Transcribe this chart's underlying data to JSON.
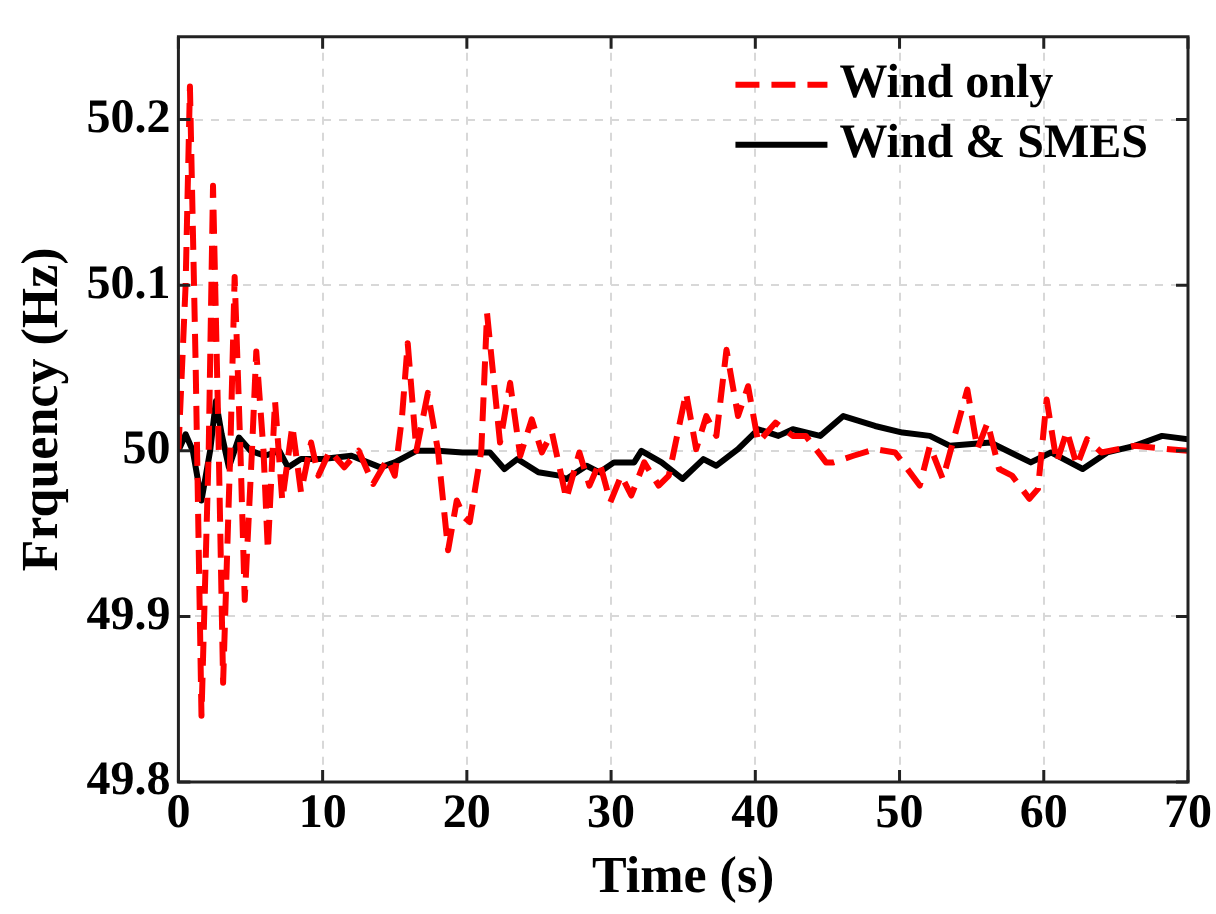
{
  "chart_data": {
    "type": "line",
    "xlabel": "Time (s)",
    "ylabel": "Frquency (Hz)",
    "xlim": [
      0,
      70
    ],
    "xticks": [
      0,
      10,
      20,
      30,
      40,
      50,
      60,
      70
    ],
    "ylim": [
      49.8,
      50.25
    ],
    "yticks": [
      49.8,
      49.9,
      50,
      50.1,
      50.2
    ],
    "grid": true,
    "legend": "top right",
    "marker": "none",
    "series": [
      {
        "name": "Wind only",
        "color": "#ff0000",
        "line_style": "dashed",
        "x": [
          0,
          0.5,
          0.8,
          1.2,
          1.6,
          2.1,
          2.4,
          2.8,
          3.1,
          3.6,
          3.9,
          4.3,
          4.6,
          5.1,
          5.4,
          5.9,
          6.2,
          6.7,
          7.2,
          7.9,
          8.5,
          9.2,
          9.7,
          10.5,
          11.5,
          12.5,
          13.5,
          14.5,
          15,
          15.5,
          15.9,
          16.5,
          17.3,
          18,
          18.7,
          19.3,
          19.8,
          20.2,
          21,
          21.4,
          22.3,
          23,
          23.7,
          24.5,
          25.2,
          25.9,
          26.9,
          27.8,
          28.5,
          29.2,
          29.95,
          30.7,
          31.4,
          32.3,
          33.3,
          34,
          35.2,
          35.9,
          36.6,
          37.3,
          38,
          38.8,
          39.5,
          40.2,
          41.4,
          42.6,
          43.5,
          44.9,
          45.4,
          46.8,
          48.3,
          49.7,
          51.4,
          52.1,
          53,
          54.7,
          55.4,
          56.1,
          56.9,
          57.8,
          59,
          59.6,
          60.2,
          60.9,
          61.6,
          62.3,
          63,
          64,
          66.3,
          68.7,
          70
        ],
        "values": [
          50,
          50.1,
          50.22,
          50.05,
          49.84,
          50,
          50.16,
          50,
          49.86,
          50,
          50.105,
          50,
          49.91,
          50,
          50.06,
          50,
          49.94,
          50.03,
          49.97,
          50.015,
          49.975,
          50.005,
          49.985,
          50,
          49.99,
          50,
          49.98,
          49.995,
          49.985,
          50.02,
          50.065,
          50,
          50.035,
          50,
          49.94,
          49.97,
          49.96,
          49.957,
          50,
          50.083,
          50.005,
          50.041,
          49.997,
          50.019,
          49.999,
          50.011,
          49.971,
          49.999,
          49.979,
          49.993,
          49.969,
          49.985,
          49.973,
          49.993,
          49.979,
          49.985,
          50.035,
          50.001,
          50.021,
          50.009,
          50.061,
          50.021,
          50.039,
          50.005,
          50.017,
          50.009,
          50.009,
          49.993,
          49.993,
          49.997,
          50.001,
          49.999,
          49.979,
          50.003,
          49.983,
          50.037,
          50.001,
          50.017,
          49.989,
          49.985,
          49.971,
          49.977,
          50.031,
          49.993,
          50.012,
          49.991,
          50.007,
          49.999,
          50.003,
          50.001,
          50
        ]
      },
      {
        "name": "Wind & SMES",
        "color": "#000000",
        "line_style": "solid",
        "x": [
          0,
          0.5,
          1,
          1.6,
          2.2,
          2.6,
          3,
          3.5,
          4.2,
          5,
          6,
          7,
          7.6,
          8.5,
          10,
          12,
          14,
          15,
          16.5,
          18,
          19.7,
          21.6,
          22.6,
          23.5,
          24.96,
          26.4,
          26.9,
          28.3,
          29.2,
          30.2,
          31.6,
          32.1,
          33.5,
          34.95,
          36.4,
          37.3,
          38.8,
          40.2,
          41.6,
          42.6,
          44.5,
          46.1,
          48.3,
          50.2,
          52.1,
          53.5,
          56.3,
          59.1,
          60.5,
          62.7,
          64.4,
          66.3,
          68.2,
          70
        ],
        "values": [
          50,
          50.01,
          50,
          49.97,
          50,
          50.03,
          50.01,
          49.99,
          50.008,
          50,
          49.997,
          50,
          49.99,
          49.995,
          49.995,
          49.997,
          49.99,
          49.993,
          50,
          50,
          49.999,
          49.999,
          49.989,
          49.995,
          49.987,
          49.985,
          49.983,
          49.991,
          49.987,
          49.993,
          49.993,
          50,
          49.993,
          49.983,
          49.995,
          49.991,
          50.001,
          50.013,
          50.009,
          50.013,
          50.009,
          50.021,
          50.015,
          50.011,
          50.009,
          50.003,
          50.005,
          49.993,
          49.999,
          49.989,
          49.999,
          50.003,
          50.009,
          50.007
        ]
      }
    ]
  }
}
